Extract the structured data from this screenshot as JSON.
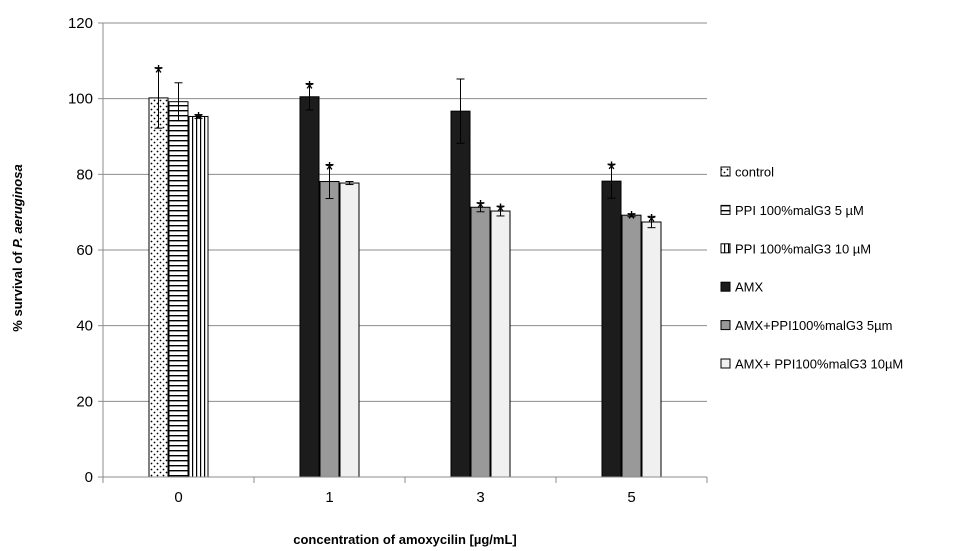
{
  "chart_data": {
    "type": "bar",
    "title": "",
    "xlabel": "concentration of amoxycilin [µg/mL]",
    "ylabel_prefix": "% survival of ",
    "ylabel_italic": "P. aeruginosa",
    "ylim": [
      0,
      120
    ],
    "yticks": [
      0,
      20,
      40,
      60,
      80,
      100,
      120
    ],
    "grid": true,
    "legend_position": "right",
    "categories": [
      "0",
      "1",
      "3",
      "5"
    ],
    "significance_marker": "*",
    "series": [
      {
        "name": "control",
        "pattern": "dots",
        "color": "#ffffff",
        "values": [
          100.2,
          null,
          null,
          null
        ],
        "errors": [
          8,
          null,
          null,
          null
        ],
        "significant": [
          true,
          false,
          false,
          false
        ]
      },
      {
        "name": "PPI 100%malG3 5 µM",
        "pattern": "hlines",
        "color": "#ffffff",
        "values": [
          99.2,
          null,
          null,
          null
        ],
        "errors": [
          5,
          null,
          null,
          null
        ],
        "significant": [
          false,
          false,
          false,
          false
        ]
      },
      {
        "name": "PPI 100%malG3 10 µM",
        "pattern": "vlines",
        "color": "#ffffff",
        "values": [
          95.3,
          null,
          null,
          null
        ],
        "errors": [
          0.5,
          null,
          null,
          null
        ],
        "significant": [
          true,
          false,
          false,
          false
        ]
      },
      {
        "name": "AMX",
        "pattern": "solid",
        "color": "#1c1c1c",
        "values": [
          null,
          100.5,
          96.7,
          78.2
        ],
        "errors": [
          null,
          3.5,
          8.5,
          4.5
        ],
        "significant": [
          false,
          true,
          false,
          true
        ]
      },
      {
        "name": "AMX+PPI100%malG3 5µm",
        "pattern": "solid",
        "color": "#999999",
        "values": [
          null,
          78.1,
          71.3,
          69.2
        ],
        "errors": [
          null,
          4.5,
          1.2,
          0.4
        ],
        "significant": [
          false,
          true,
          true,
          true
        ]
      },
      {
        "name": "AMX+ PPI100%malG3 10µM",
        "pattern": "solid",
        "color": "#f0f0f0",
        "values": [
          null,
          77.7,
          70.3,
          67.4
        ],
        "errors": [
          null,
          0.4,
          1.3,
          1.5
        ],
        "significant": [
          false,
          false,
          true,
          true
        ]
      }
    ]
  }
}
